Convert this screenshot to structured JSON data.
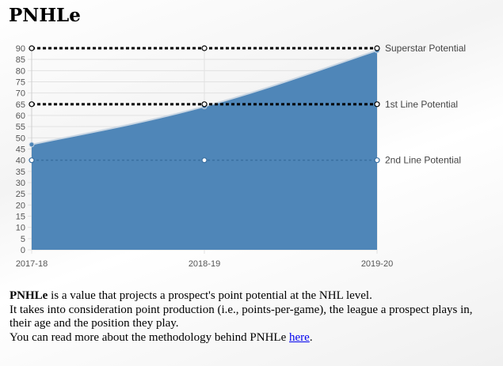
{
  "page": {
    "title": "PNHLe",
    "description": {
      "term": "PNHLe",
      "line1_rest": " is a value that projects a prospect's point potential at the NHL level.",
      "line2": "It takes into consideration point production (i.e., points-per-game), the league a prospect plays in, their age and the position they play.",
      "line3_prefix": "You can read more about the methodology behind PNHLe ",
      "link_text": "here",
      "line3_suffix": "."
    }
  },
  "chart_data": {
    "type": "area",
    "title": "",
    "xlabel": "",
    "ylabel": "",
    "categories": [
      "2017-18",
      "2018-19",
      "2019-20"
    ],
    "series": [
      {
        "values": [
          47,
          64,
          89
        ],
        "color": "#4f86b8"
      }
    ],
    "reference_lines": [
      {
        "name": "Superstar Potential",
        "value": 90,
        "style": "dashed",
        "color": "#000000"
      },
      {
        "name": "1st Line Potential",
        "value": 65,
        "style": "dashed",
        "color": "#000000"
      },
      {
        "name": "2nd Line Potential",
        "value": 40,
        "style": "dashed",
        "color": "#3a6fa0"
      }
    ],
    "ylim": [
      0,
      90
    ],
    "yticks": [
      0,
      5,
      10,
      15,
      20,
      25,
      30,
      35,
      40,
      45,
      50,
      55,
      60,
      65,
      70,
      75,
      80,
      85,
      90
    ],
    "grid": true,
    "legend": "none"
  }
}
